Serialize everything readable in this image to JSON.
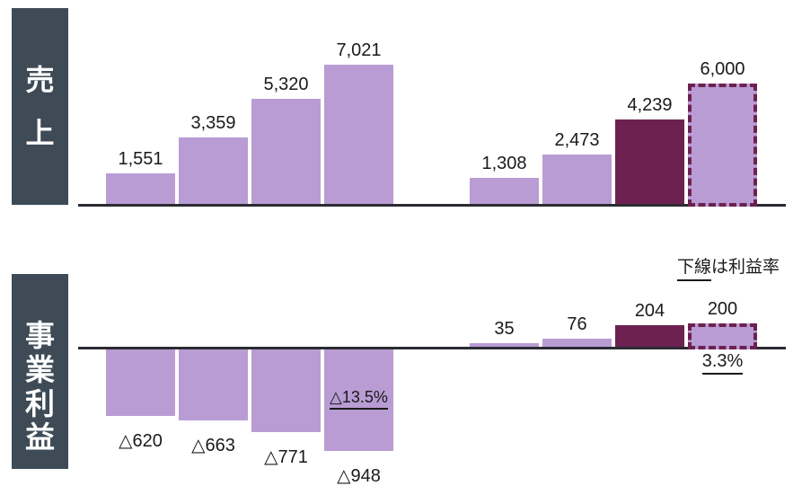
{
  "colors": {
    "bar_light": "#b99cd3",
    "bar_dark": "#6d2150",
    "dashed_border": "#6d2150",
    "sidebar_bg": "#3e4b57",
    "axis_line": "#2b2b33",
    "text": "#1a1a1a",
    "sidebar_text": "#ffffff"
  },
  "sections": {
    "sales": {
      "row_label": "売上",
      "row_label_chars": [
        "売",
        "上"
      ]
    },
    "profit": {
      "row_label": "事業利益",
      "row_label_chars": [
        "事",
        "業",
        "利",
        "益"
      ],
      "note_underlined": "下線",
      "note_rest": "は利益率"
    }
  },
  "chart_data": [
    {
      "id": "sales",
      "type": "bar",
      "title": "売上",
      "ylim": [
        0,
        7021
      ],
      "legend": "none",
      "grid": false,
      "bar_style_meaning": {
        "light": "actual",
        "dark": "latest actual",
        "forecast-dashed": "forecast (dashed outline)"
      },
      "groups": [
        {
          "name": "left-period",
          "bars": [
            {
              "label": "1,551",
              "value": 1551,
              "style": "light"
            },
            {
              "label": "3,359",
              "value": 3359,
              "style": "light"
            },
            {
              "label": "5,320",
              "value": 5320,
              "style": "light"
            },
            {
              "label": "7,021",
              "value": 7021,
              "style": "light"
            }
          ]
        },
        {
          "name": "right-period",
          "bars": [
            {
              "label": "1,308",
              "value": 1308,
              "style": "light"
            },
            {
              "label": "2,473",
              "value": 2473,
              "style": "light"
            },
            {
              "label": "4,239",
              "value": 4239,
              "style": "dark"
            },
            {
              "label": "6,000",
              "value": 6000,
              "style": "forecast-dashed"
            }
          ]
        }
      ]
    },
    {
      "id": "profit",
      "type": "bar",
      "title": "事業利益",
      "annotation": "下線は利益率",
      "ylim": [
        -948,
        204
      ],
      "legend": "none",
      "grid": false,
      "groups": [
        {
          "name": "left-period",
          "bars": [
            {
              "label": "△620",
              "value": -620,
              "style": "light"
            },
            {
              "label": "△663",
              "value": -663,
              "style": "light"
            },
            {
              "label": "△771",
              "value": -771,
              "style": "light"
            },
            {
              "label": "△948",
              "value": -948,
              "style": "light",
              "margin_label": "△13.5%"
            }
          ]
        },
        {
          "name": "right-period",
          "bars": [
            {
              "label": "35",
              "value": 35,
              "style": "light"
            },
            {
              "label": "76",
              "value": 76,
              "style": "light"
            },
            {
              "label": "204",
              "value": 204,
              "style": "dark"
            },
            {
              "label": "200",
              "value": 200,
              "style": "forecast-dashed",
              "margin_label": "3.3%"
            }
          ]
        }
      ]
    }
  ]
}
